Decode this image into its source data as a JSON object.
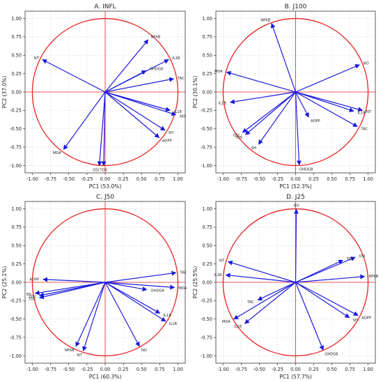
{
  "colors": {
    "circle": "#e8201f",
    "axis_line": "#e8201f",
    "vector": "#1a1adf",
    "grid": "#d9d9d9",
    "frame": "#333333",
    "text": "#222222"
  },
  "chart_data": [
    {
      "type": "scatter",
      "title": "A. INFL",
      "xlabel": "PC1 (53.0%)",
      "ylabel": "PC2 (37.0%)",
      "xlim": [
        -1.1,
        1.1
      ],
      "ylim": [
        -1.1,
        1.1
      ],
      "grid": true,
      "x_ticks": [
        "-1.00",
        "-0.75",
        "-0.50",
        "-0.25",
        "0.00",
        "0.25",
        "0.50",
        "0.75",
        "1.00"
      ],
      "y_ticks": [
        "1.00",
        "0.75",
        "0.50",
        "0.25",
        "0.00",
        "-0.25",
        "-0.50",
        "-0.75",
        "-1.00"
      ],
      "vectors": [
        {
          "label": "NT",
          "x": -0.86,
          "y": 0.44
        },
        {
          "label": "NFKB",
          "x": 0.59,
          "y": 0.71
        },
        {
          "label": "IL1B",
          "x": 0.87,
          "y": 0.44
        },
        {
          "label": "OHDG8",
          "x": 0.56,
          "y": 0.29
        },
        {
          "label": "TAC",
          "x": 0.94,
          "y": 0.18
        },
        {
          "label": "IL18",
          "x": 0.89,
          "y": -0.25
        },
        {
          "label": "NO",
          "x": 0.97,
          "y": -0.31
        },
        {
          "label": "SH",
          "x": 0.82,
          "y": -0.52
        },
        {
          "label": "AOPP",
          "x": 0.74,
          "y": -0.62
        },
        {
          "label": "MDA",
          "x": -0.57,
          "y": -0.78
        },
        {
          "label": "OSI",
          "x": -0.08,
          "y": -1.0
        },
        {
          "label": "TOS",
          "x": -0.02,
          "y": -1.0
        }
      ]
    },
    {
      "type": "scatter",
      "title": "B. J100",
      "xlabel": "PC1 (52.3%)",
      "ylabel": "PC2 (30.1%)",
      "xlim": [
        -1.1,
        1.1
      ],
      "ylim": [
        -1.1,
        1.1
      ],
      "grid": true,
      "x_ticks": [
        "-1.00",
        "-0.75",
        "-0.50",
        "-0.25",
        "0.00",
        "0.25",
        "0.50",
        "0.75",
        "1.00"
      ],
      "y_ticks": [
        "1.00",
        "0.75",
        "0.50",
        "0.25",
        "0.00",
        "-0.25",
        "-0.50",
        "-0.75",
        "-1.00"
      ],
      "vectors": [
        {
          "label": "NFKB",
          "x": -0.33,
          "y": 0.93
        },
        {
          "label": "NO",
          "x": 0.88,
          "y": 0.37
        },
        {
          "label": "MDA",
          "x": -0.95,
          "y": 0.27
        },
        {
          "label": "IL1B",
          "x": -0.9,
          "y": -0.14
        },
        {
          "label": "AOPP",
          "x": 0.18,
          "y": -0.34
        },
        {
          "label": "NT",
          "x": 0.92,
          "y": -0.25
        },
        {
          "label": "IL18",
          "x": 0.8,
          "y": -0.26
        },
        {
          "label": "TAC",
          "x": 0.85,
          "y": -0.47
        },
        {
          "label": "OSI",
          "x": -0.73,
          "y": -0.55
        },
        {
          "label": "TOS",
          "x": -0.69,
          "y": -0.58
        },
        {
          "label": "SH",
          "x": -0.51,
          "y": -0.71
        },
        {
          "label": "OHDG8",
          "x": 0.05,
          "y": -0.99
        }
      ]
    },
    {
      "type": "scatter",
      "title": "C. J50",
      "xlabel": "PC1 (60.3%)",
      "ylabel": "PC2 (25.1%)",
      "xlim": [
        -1.1,
        1.1
      ],
      "ylim": [
        -1.1,
        1.1
      ],
      "grid": true,
      "x_ticks": [
        "-1.00",
        "-0.75",
        "-0.50",
        "-0.25",
        "0.00",
        "0.25",
        "0.50",
        "0.75",
        "1.00"
      ],
      "y_ticks": [
        "1.00",
        "0.75",
        "0.50",
        "0.25",
        "0.00",
        "-0.25",
        "-0.50",
        "-0.75",
        "-1.00"
      ],
      "vectors": [
        {
          "label": "TAC",
          "x": 0.97,
          "y": 0.13
        },
        {
          "label": "AOPP",
          "x": -0.85,
          "y": 0.04
        },
        {
          "label": "MDA",
          "x": 0.95,
          "y": -0.07
        },
        {
          "label": "OHDG8",
          "x": 0.57,
          "y": -0.1
        },
        {
          "label": "SH",
          "x": -0.96,
          "y": -0.15
        },
        {
          "label": "OSI",
          "x": -0.9,
          "y": -0.18
        },
        {
          "label": "TOS",
          "x": -0.9,
          "y": -0.21
        },
        {
          "label": "IL18",
          "x": 0.75,
          "y": -0.42
        },
        {
          "label": "IL1B",
          "x": 0.83,
          "y": -0.53
        },
        {
          "label": "NFKB",
          "x": -0.4,
          "y": -0.87
        },
        {
          "label": "NT",
          "x": -0.3,
          "y": -0.93
        },
        {
          "label": "NO",
          "x": 0.47,
          "y": -0.87
        }
      ]
    },
    {
      "type": "scatter",
      "title": "D. J25",
      "xlabel": "PC1 (57.7%)",
      "ylabel": "PC2 (25.5%)",
      "xlim": [
        -1.1,
        1.1
      ],
      "ylim": [
        -1.1,
        1.1
      ],
      "grid": true,
      "x_ticks": [
        "-1.00",
        "-0.75",
        "-0.50",
        "-0.25",
        "0.00",
        "0.25",
        "0.50",
        "0.75",
        "1.00"
      ],
      "y_ticks": [
        "1.00",
        "0.75",
        "0.50",
        "0.25",
        "0.00",
        "-0.25",
        "-0.50",
        "-0.75",
        "-1.00"
      ],
      "vectors": [
        {
          "label": "NO",
          "x": 0.01,
          "y": 0.99
        },
        {
          "label": "OSI",
          "x": 0.82,
          "y": 0.34
        },
        {
          "label": "TOS",
          "x": 0.65,
          "y": 0.3
        },
        {
          "label": "NT",
          "x": -0.93,
          "y": 0.28
        },
        {
          "label": "IL1B",
          "x": -0.96,
          "y": 0.1
        },
        {
          "label": "NFKB",
          "x": 0.95,
          "y": 0.08
        },
        {
          "label": "TAC",
          "x": -0.52,
          "y": -0.24
        },
        {
          "label": "MDA",
          "x": -0.85,
          "y": -0.5
        },
        {
          "label": "IL18",
          "x": -0.7,
          "y": -0.56
        },
        {
          "label": "SH",
          "x": 0.74,
          "y": -0.48
        },
        {
          "label": "AOPP",
          "x": 0.86,
          "y": -0.45
        },
        {
          "label": "OHDG8",
          "x": 0.38,
          "y": -0.92
        }
      ]
    }
  ]
}
